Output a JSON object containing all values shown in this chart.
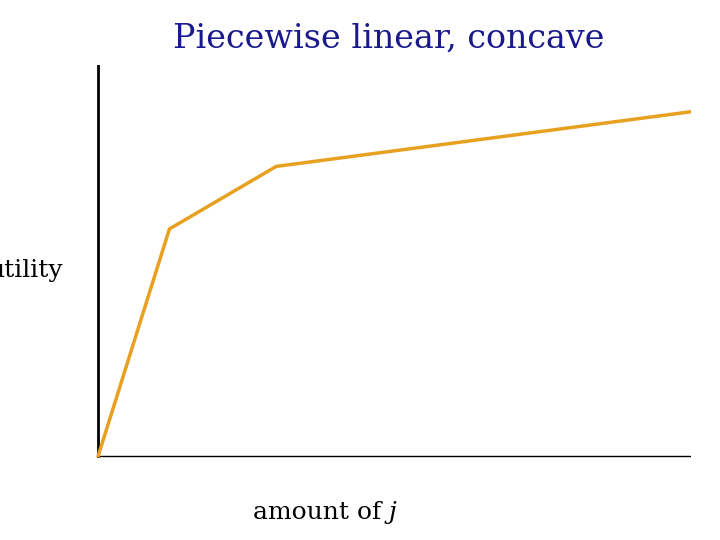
{
  "title": "Piecewise linear, concave",
  "title_color": "#1a1a8c",
  "title_fontsize": 24,
  "xlabel_regular": "amount of ",
  "xlabel_italic": "j",
  "ylabel": "utility",
  "ylabel_fontsize": 18,
  "xlabel_fontsize": 18,
  "line_color": "#E8A020",
  "line_width": 2.5,
  "background_color": "#ffffff",
  "axis_color": "#000000",
  "breakpoints_x": [
    0.0,
    0.12,
    0.3,
    1.0
  ],
  "breakpoints_y": [
    0.0,
    0.58,
    0.74,
    0.88
  ]
}
